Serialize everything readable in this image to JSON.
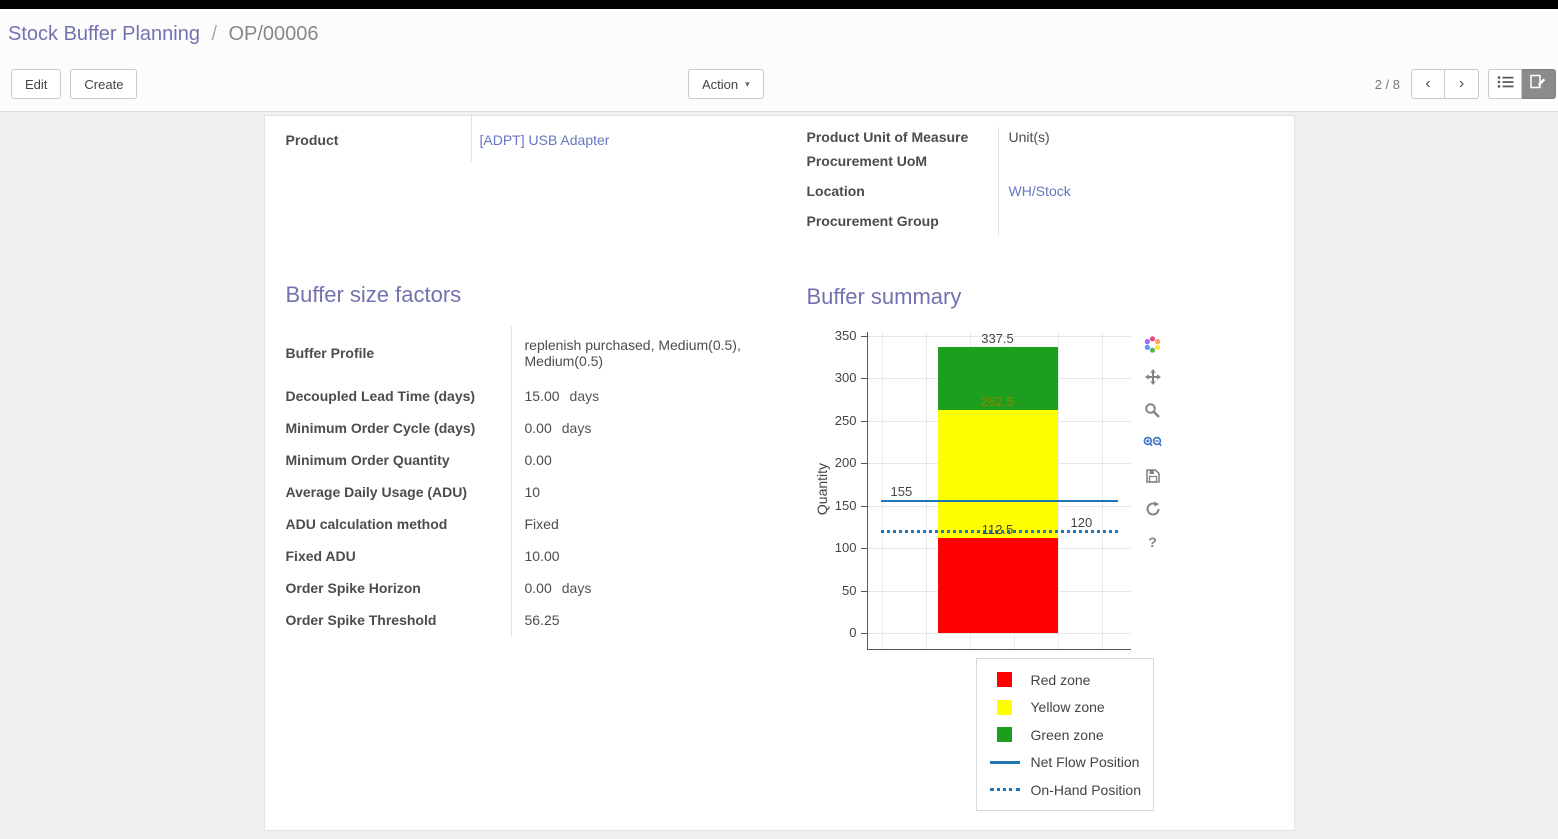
{
  "breadcrumb": {
    "parent": "Stock Buffer Planning",
    "separator": "/",
    "current": "OP/00006"
  },
  "control_panel": {
    "edit_label": "Edit",
    "create_label": "Create",
    "action_label": "Action",
    "pager": "2 / 8",
    "icons": {
      "prev": "‹",
      "next": "›",
      "caret": "▾"
    }
  },
  "colors": {
    "accent": "#7372b0",
    "link": "#6577c0"
  },
  "form": {
    "left_fields": [
      {
        "label": "Product",
        "value": "[ADPT] USB Adapter",
        "is_link": true
      }
    ],
    "right_fields": [
      {
        "label": "Product Unit of Measure",
        "value": "Unit(s)",
        "is_link": false
      },
      {
        "label": "Procurement UoM",
        "value": "",
        "is_link": false
      },
      {
        "label": "Location",
        "value": "WH/Stock",
        "is_link": true
      },
      {
        "label": "Procurement Group",
        "value": "",
        "is_link": false
      }
    ],
    "buffer_factors": {
      "title": "Buffer size factors",
      "rows": [
        {
          "label": "Buffer Profile",
          "value": "replenish purchased, Medium(0.5), Medium(0.5)",
          "suffix": ""
        },
        {
          "label": "Decoupled Lead Time (days)",
          "value": "15.00",
          "suffix": "days"
        },
        {
          "label": "Minimum Order Cycle (days)",
          "value": "0.00",
          "suffix": "days"
        },
        {
          "label": "Minimum Order Quantity",
          "value": "0.00",
          "suffix": ""
        },
        {
          "label": "Average Daily Usage (ADU)",
          "value": "10",
          "suffix": ""
        },
        {
          "label": "ADU calculation method",
          "value": "Fixed",
          "suffix": ""
        },
        {
          "label": "Fixed ADU",
          "value": "10.00",
          "suffix": ""
        },
        {
          "label": "Order Spike Horizon",
          "value": "0.00",
          "suffix": "days"
        },
        {
          "label": "Order Spike Threshold",
          "value": "56.25",
          "suffix": ""
        }
      ]
    },
    "buffer_summary": {
      "title": "Buffer summary"
    }
  },
  "chart_data": {
    "type": "bar",
    "title": "Buffer summary",
    "ylabel": "Quantity",
    "ylim": [
      0,
      350
    ],
    "yticks": [
      0,
      50,
      100,
      150,
      200,
      250,
      300,
      350
    ],
    "grid": true,
    "help_glyph": "?",
    "zones": [
      {
        "name": "Red zone",
        "from": 0,
        "to": 112.5,
        "color": "#ff0000"
      },
      {
        "name": "Yellow zone",
        "from": 112.5,
        "to": 262.5,
        "color": "#ffff00"
      },
      {
        "name": "Green zone",
        "from": 262.5,
        "to": 337.5,
        "color": "#1e9e1e"
      }
    ],
    "lines": [
      {
        "name": "Net Flow Position",
        "value": 155,
        "label": "155",
        "style": "solid",
        "color": "#1f77b4"
      },
      {
        "name": "On-Hand Position",
        "value": 120,
        "label": "120",
        "style": "dotted",
        "color": "#1f77b4"
      }
    ],
    "annotations": [
      {
        "text": "337.5",
        "value": 337.5,
        "color": "#444444"
      },
      {
        "text": "262.5",
        "value": 262.5,
        "color": "#8b8b00"
      },
      {
        "text": "112.5",
        "value": 112.5,
        "color": "#444444"
      }
    ],
    "legend": [
      "Red zone",
      "Yellow zone",
      "Green zone",
      "Net Flow Position",
      "On-Hand Position"
    ],
    "legend_position": "bottom-right"
  }
}
